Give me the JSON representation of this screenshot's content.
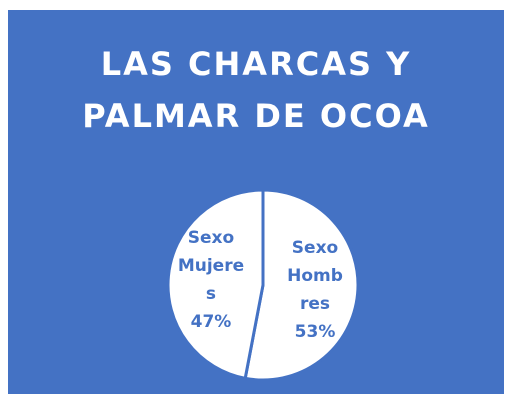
{
  "chart_data": {
    "type": "pie",
    "title": "LAS CHARCAS Y PALMAR DE OCOA",
    "categories": [
      "Sexo Hombres",
      "Sexo Mujeres"
    ],
    "values": [
      53,
      47
    ],
    "value_labels": [
      "53%",
      "47%"
    ],
    "background": "#4472c4",
    "color": "#ffffff",
    "label_color": "#4472c4"
  }
}
